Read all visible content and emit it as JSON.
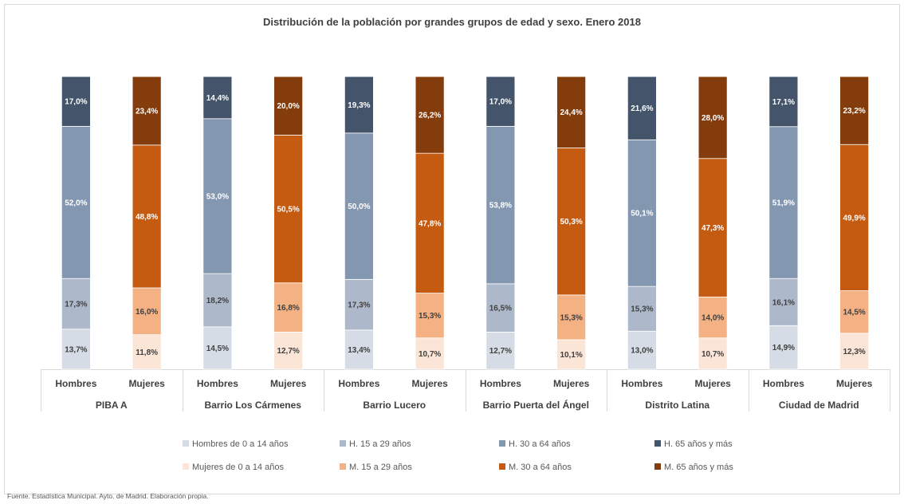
{
  "chart_data": {
    "type": "stacked-bar-100",
    "title": "Distribución de la población por grandes grupos de edad y sexo. Enero 2018",
    "groups": [
      "PIBA A",
      "Barrio Los Cármenes",
      "Barrio Lucero",
      "Barrio Puerta del Ángel",
      "Distrito Latina",
      "Ciudad de Madrid"
    ],
    "subcategories": [
      "Hombres",
      "Mujeres"
    ],
    "age_groups": [
      "0 a 14 años",
      "15 a 29 años",
      "30 a 64 años",
      "65 años y más"
    ],
    "data": [
      {
        "group": "PIBA A",
        "Hombres": [
          13.7,
          17.3,
          52.0,
          17.0
        ],
        "Mujeres": [
          11.8,
          16.0,
          48.8,
          23.4
        ]
      },
      {
        "group": "Barrio Los Cármenes",
        "Hombres": [
          14.5,
          18.2,
          53.0,
          14.4
        ],
        "Mujeres": [
          12.7,
          16.8,
          50.5,
          20.0
        ]
      },
      {
        "group": "Barrio Lucero",
        "Hombres": [
          13.4,
          17.3,
          50.0,
          19.3
        ],
        "Mujeres": [
          10.7,
          15.3,
          47.8,
          26.2
        ]
      },
      {
        "group": "Barrio Puerta del Ángel",
        "Hombres": [
          12.7,
          16.5,
          53.8,
          17.0
        ],
        "Mujeres": [
          10.1,
          15.3,
          50.3,
          24.4
        ]
      },
      {
        "group": "Distrito Latina",
        "Hombres": [
          13.0,
          15.3,
          50.1,
          21.6
        ],
        "Mujeres": [
          10.7,
          14.0,
          47.3,
          28.0
        ]
      },
      {
        "group": "Ciudad de Madrid",
        "Hombres": [
          14.9,
          16.1,
          51.9,
          17.1
        ],
        "Mujeres": [
          12.3,
          14.5,
          49.9,
          23.2
        ]
      }
    ],
    "ylim": [
      0,
      100
    ],
    "legend_position": "bottom",
    "legend": {
      "Hombres": [
        "Hombres de 0 a 14 años",
        "H. 15 a 29 años",
        "H. 30 a 64 años",
        "H. 65 años y más"
      ],
      "Mujeres": [
        "Mujeres de 0 a 14 años",
        "M. 15 a 29 años",
        "M. 30 a 64 años",
        "M. 65 años y más"
      ]
    },
    "colors": {
      "Hombres": [
        "#d6dce5",
        "#adb9ca",
        "#8497b0",
        "#44546a"
      ],
      "Mujeres": [
        "#fbe5d6",
        "#f4b183",
        "#c55a11",
        "#843c0c"
      ]
    },
    "label_colors": {
      "Hombres": [
        "#404040",
        "#404040",
        "#ffffff",
        "#ffffff"
      ],
      "Mujeres": [
        "#404040",
        "#404040",
        "#ffffff",
        "#ffffff"
      ]
    },
    "decimal_separator": ","
  },
  "source_note": "Fuente. Estadística Municipal. Ayto. de Madrid. Elaboración propia."
}
